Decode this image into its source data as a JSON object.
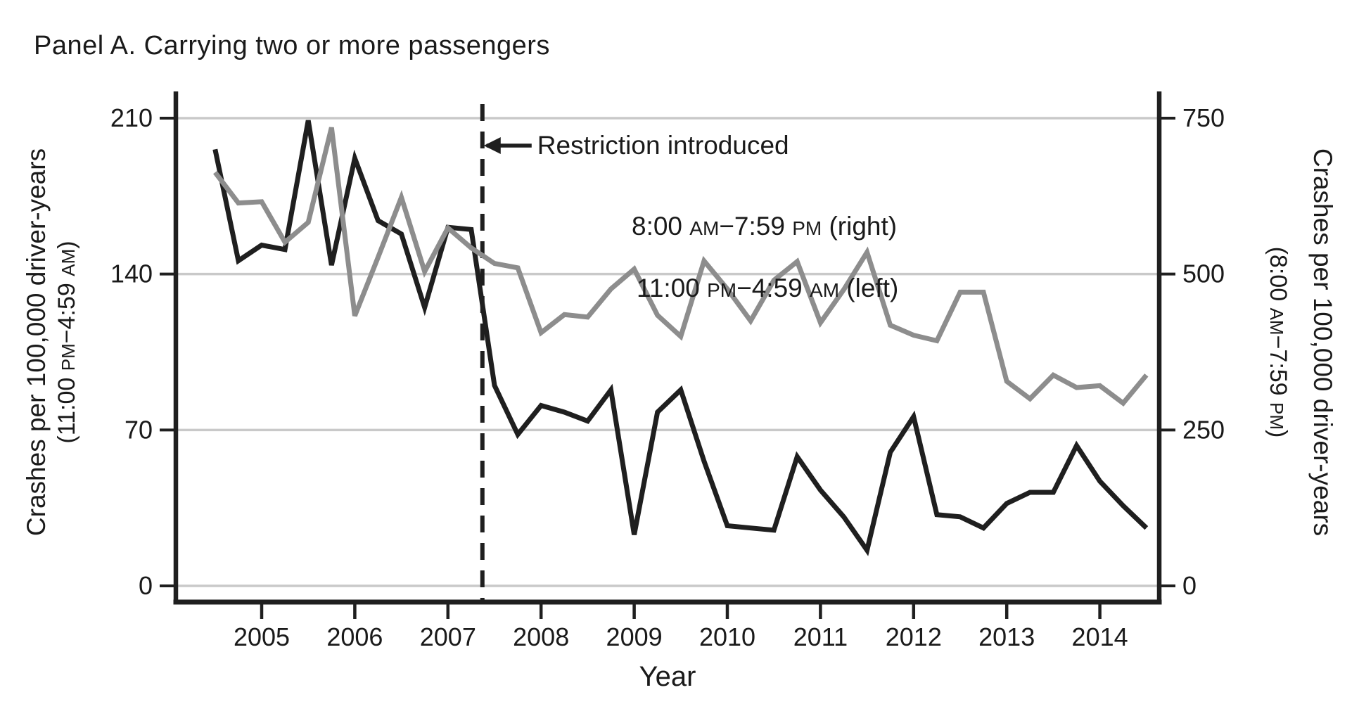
{
  "title": "Panel A. Carrying two or more passengers",
  "chart_data": {
    "type": "line",
    "title": "Panel A. Carrying two or more passengers",
    "xlabel": "Year",
    "x_ticks": [
      2005,
      2006,
      2007,
      2008,
      2009,
      2010,
      2011,
      2012,
      2013,
      2014
    ],
    "x_range": [
      2004.33,
      2014.75
    ],
    "grid": true,
    "left_axis": {
      "label_line1": "Crashes per 100,000 driver-years",
      "label_line2": "(11:00 PM−4:59 AM)",
      "ticks": [
        0,
        70,
        140,
        210
      ],
      "max_units": 210
    },
    "right_axis": {
      "label_line1": "Crashes per 100,000 driver-years",
      "label_line2": "(8:00 AM−7:59 PM)",
      "ticks": [
        0,
        250,
        500,
        750
      ],
      "max_units": 750
    },
    "x": [
      2004.5,
      2004.75,
      2005,
      2005.25,
      2005.5,
      2005.75,
      2006,
      2006.25,
      2006.5,
      2006.75,
      2007,
      2007.25,
      2007.5,
      2007.75,
      2008,
      2008.25,
      2008.5,
      2008.75,
      2009,
      2009.25,
      2009.5,
      2009.75,
      2010,
      2010.25,
      2010.5,
      2010.75,
      2011,
      2011.25,
      2011.5,
      2011.75,
      2012,
      2012.25,
      2012.5,
      2012.75,
      2013,
      2013.25,
      2013.5,
      2013.75,
      2014,
      2014.25,
      2014.5
    ],
    "series": [
      {
        "name": "11:00 PM−4:59 AM (left)",
        "axis": "left",
        "color": "#1f1f1f",
        "values": [
          196,
          146,
          153,
          151,
          209,
          144,
          192,
          164,
          158,
          125,
          161,
          160,
          90,
          68,
          81,
          78,
          74,
          88,
          23,
          78,
          88,
          56,
          27,
          26,
          25,
          58,
          43,
          31,
          16,
          60,
          76,
          32,
          31,
          26,
          37,
          42,
          42,
          63,
          47,
          36,
          26
        ]
      },
      {
        "name": "8:00 AM−7:59 PM (right)",
        "axis": "right",
        "color": "#8d8d8d",
        "values": [
          663,
          614,
          616,
          551,
          583,
          735,
          433,
          527,
          623,
          504,
          574,
          542,
          517,
          510,
          406,
          435,
          431,
          476,
          508,
          434,
          400,
          521,
          476,
          425,
          490,
          520,
          422,
          475,
          535,
          418,
          402,
          393,
          471,
          471,
          328,
          300,
          338,
          318,
          321,
          293,
          338
        ]
      }
    ],
    "annotations": {
      "restriction_x": 2007.37,
      "restriction_label": "Restriction introduced",
      "series_label_left": "11:00 PM−4:59 AM (left)",
      "series_label_right": "8:00 AM−7:59 PM (right)"
    }
  },
  "colors": {
    "black_series": "#1f1f1f",
    "gray_series": "#8d8d8d",
    "gridline": "#c9c9c9",
    "axis": "#1f1f1f",
    "background": "#ffffff"
  }
}
